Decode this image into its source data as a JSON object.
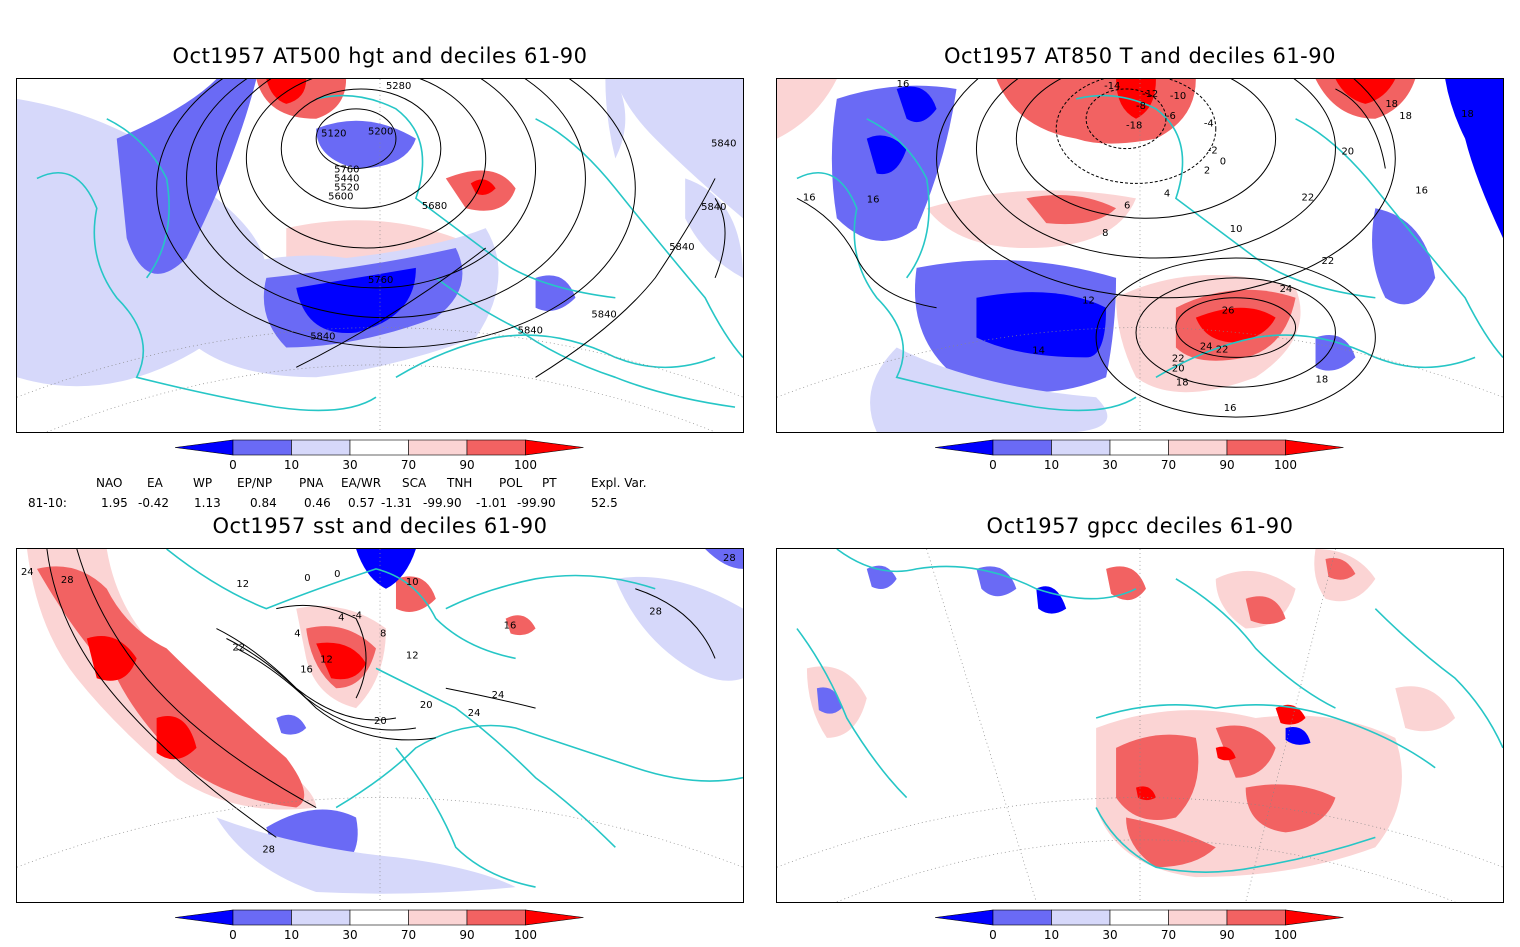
{
  "panels": [
    {
      "title": "Oct1957 AT500 hgt and deciles 61-90",
      "contour_labels": [
        "5280",
        "5120",
        "5200",
        "5440",
        "5520",
        "5600",
        "5680",
        "5760",
        "5840",
        "5840",
        "5840",
        "5840",
        "5760",
        "5840",
        "5840"
      ]
    },
    {
      "title": "Oct1957 AT850 T and deciles 61-90",
      "contour_labels": [
        "16",
        "-14",
        "-12",
        "-10",
        "-8",
        "-6",
        "-4",
        "-18",
        "-2",
        "0",
        "2",
        "4",
        "6",
        "8",
        "10",
        "12",
        "14",
        "16",
        "18",
        "18",
        "20",
        "22",
        "22",
        "22",
        "24",
        "26",
        "24",
        "22",
        "20",
        "18",
        "16",
        "18",
        "16",
        "16",
        "18"
      ]
    },
    {
      "title": "Oct1957 sst and deciles 61-90",
      "contour_labels": [
        "24",
        "28",
        "12",
        "0",
        "0",
        "-4",
        "4",
        "4",
        "8",
        "16",
        "12",
        "20",
        "20",
        "24",
        "24",
        "28",
        "28",
        "28",
        "10",
        "12",
        "22",
        "16"
      ]
    },
    {
      "title": "Oct1957 gpcc deciles 61-90",
      "contour_labels": []
    }
  ],
  "colorbar": {
    "labels": [
      "0",
      "10",
      "30",
      "70",
      "90",
      "100"
    ],
    "colors": [
      "#0000ff",
      "#6a6af5",
      "#d6d8fa",
      "#ffffff",
      "#fbd4d4",
      "#f26262",
      "#ff0000"
    ]
  },
  "indices": {
    "headers": [
      "NAO",
      "EA",
      "WP",
      "EP/NP",
      "PNA",
      "EA/WR",
      "SCA",
      "TNH",
      "POL",
      "PT",
      "Expl. Var."
    ],
    "row_label": "81-10:",
    "values": [
      "1.95",
      "-0.42",
      "1.13",
      "0.84",
      "0.46",
      "0.57",
      "-1.31",
      "-99.90",
      "-1.01",
      "-99.90",
      "52.5"
    ]
  },
  "colors": {
    "coastline": "#26c6c6",
    "contour": "#000000",
    "blue_dark": "#0000ff",
    "blue_mid": "#6a6af5",
    "blue_light": "#d6d8fa",
    "red_light": "#fbd4d4",
    "red_mid": "#f26262",
    "red_dark": "#ff0000"
  }
}
